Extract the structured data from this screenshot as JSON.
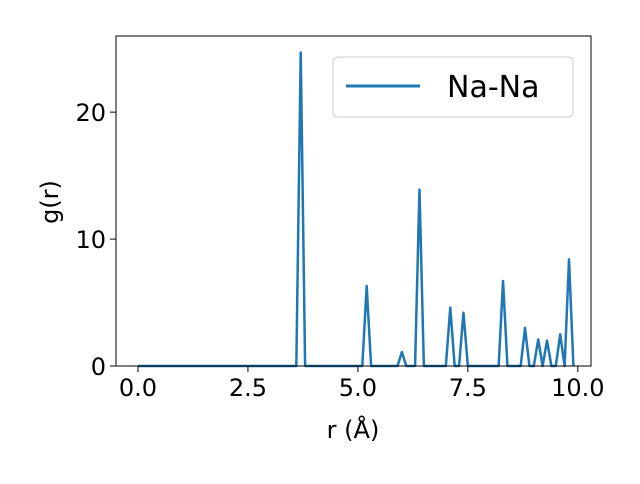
{
  "chart_data": {
    "type": "line",
    "xlabel": "r (Å)",
    "ylabel": "g(r)",
    "xlim": [
      -0.5,
      10.3
    ],
    "ylim": [
      0,
      26
    ],
    "xticks": [
      0.0,
      2.5,
      5.0,
      7.5,
      10.0
    ],
    "xtick_labels": [
      "0.0",
      "2.5",
      "5.0",
      "7.5",
      "10.0"
    ],
    "yticks": [
      0,
      10,
      20
    ],
    "ytick_labels": [
      "0",
      "10",
      "20"
    ],
    "grid": false,
    "legend_position": "top-right",
    "series": [
      {
        "name": "Na-Na",
        "color": "#1f77b4",
        "x": [
          0.0,
          3.6,
          3.7,
          3.8,
          5.1,
          5.2,
          5.3,
          5.9,
          6.0,
          6.1,
          6.3,
          6.4,
          6.5,
          7.0,
          7.1,
          7.2,
          7.3,
          7.4,
          7.5,
          8.2,
          8.3,
          8.4,
          8.7,
          8.8,
          8.9,
          9.0,
          9.1,
          9.2,
          9.3,
          9.4,
          9.5,
          9.6,
          9.7,
          9.8,
          9.9
        ],
        "y": [
          0.0,
          0.0,
          24.7,
          0.0,
          0.0,
          6.3,
          0.0,
          0.0,
          1.1,
          0.0,
          0.0,
          13.9,
          0.0,
          0.0,
          4.6,
          0.0,
          0.0,
          4.2,
          0.0,
          0.0,
          6.7,
          0.0,
          0.0,
          3.0,
          0.0,
          0.0,
          2.1,
          0.0,
          2.0,
          0.0,
          0.0,
          2.5,
          0.0,
          8.4,
          0.0
        ]
      }
    ]
  }
}
